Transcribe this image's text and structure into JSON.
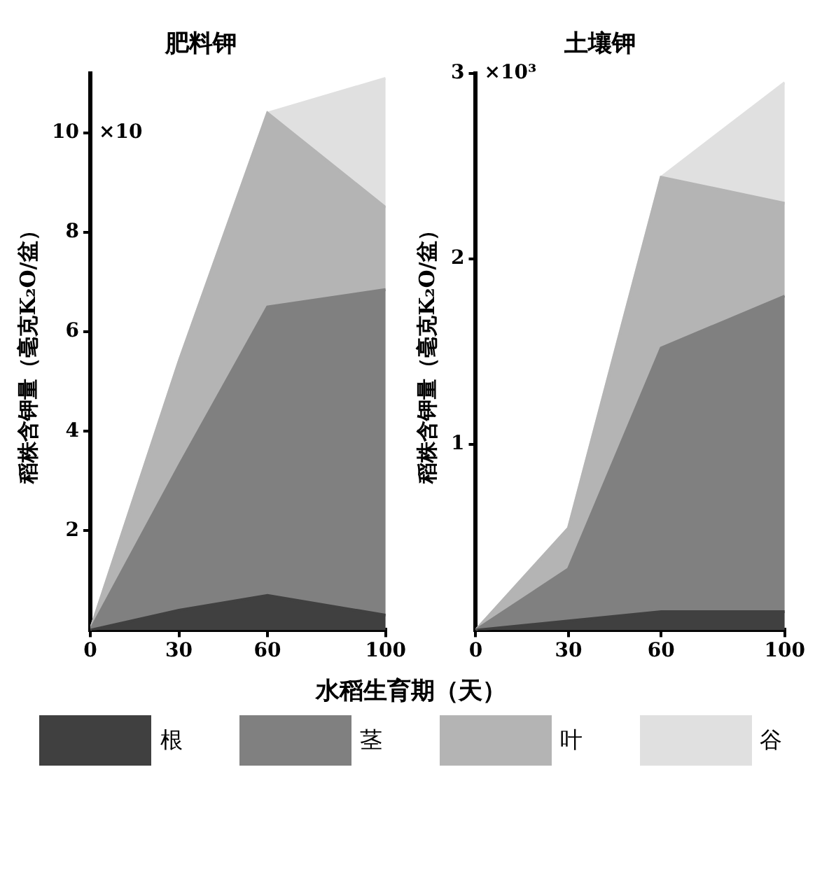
{
  "chart_data": [
    {
      "type": "area",
      "title": "肥料钾",
      "xlabel": "水稻生育期（天）",
      "ylabel": "稻株含钾量（毫克K₂O/盆）",
      "x": [
        0,
        30,
        60,
        100
      ],
      "stacked": true,
      "series": [
        {
          "name": "根",
          "color": "#404040",
          "values": [
            0,
            0.4,
            0.7,
            0.3
          ]
        },
        {
          "name": "茎",
          "color": "#808080",
          "values": [
            0,
            2.9,
            5.8,
            6.55
          ]
        },
        {
          "name": "叶",
          "color": "#b4b4b4",
          "values": [
            0,
            2.1,
            3.9,
            1.65
          ]
        },
        {
          "name": "谷",
          "color": "#e0e0e0",
          "values": [
            0,
            0,
            0,
            2.6
          ]
        }
      ],
      "xlim": [
        0,
        100
      ],
      "xticks": [
        0,
        30,
        60,
        100
      ],
      "ylim": [
        0,
        11.2
      ],
      "yticks": [
        2,
        4,
        6,
        8,
        10
      ],
      "annotations": [
        "×10"
      ],
      "legend": "bottom",
      "grid": false
    },
    {
      "type": "area",
      "title": "土壤钾",
      "ylabel": "稻株含钾量（毫克K₂O/盆）",
      "x": [
        0,
        30,
        60,
        100
      ],
      "stacked": true,
      "series": [
        {
          "color": "#404040",
          "values": [
            0,
            0.05,
            0.1,
            0.1
          ]
        },
        {
          "color": "#808080",
          "values": [
            0,
            0.28,
            1.42,
            1.7
          ]
        },
        {
          "color": "#b4b4b4",
          "values": [
            0,
            0.22,
            0.92,
            0.5
          ]
        },
        {
          "color": "#e0e0e0",
          "values": [
            0,
            0,
            0,
            0.65
          ]
        }
      ],
      "xlim": [
        0,
        100
      ],
      "xticks": [
        0,
        30,
        60,
        100
      ],
      "ylim": [
        0,
        3
      ],
      "yticks": [
        1,
        2,
        3
      ],
      "annotations": [
        "×10³"
      ],
      "grid": false
    }
  ]
}
